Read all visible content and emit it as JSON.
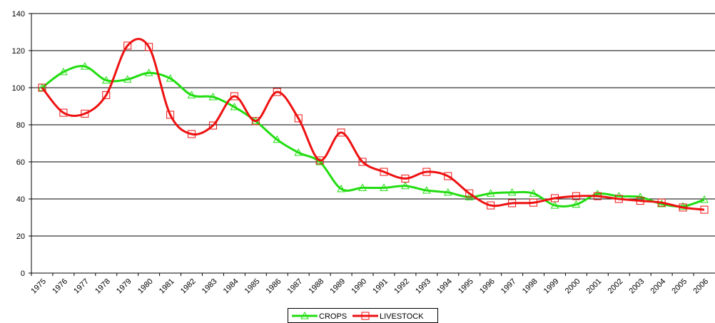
{
  "chart_data": {
    "type": "line",
    "categories": [
      "1975",
      "1976",
      "1977",
      "1978",
      "1979",
      "1980",
      "1981",
      "1982",
      "1983",
      "1984",
      "1985",
      "1986",
      "1987",
      "1988",
      "1989",
      "1990",
      "1991",
      "1992",
      "1993",
      "1994",
      "1995",
      "1996",
      "1997",
      "1998",
      "1999",
      "2000",
      "2001",
      "2002",
      "2003",
      "2004",
      "2005",
      "2006"
    ],
    "series": [
      {
        "name": "CROPS",
        "color": "#22dd11",
        "marker": "triangle",
        "values": [
          100,
          108.5,
          111.5,
          104,
          104.5,
          108,
          105,
          96,
          95,
          89.6,
          82,
          72,
          65,
          60,
          45.4,
          46,
          46,
          47,
          44.6,
          43.5,
          41,
          43,
          43.5,
          43,
          36.5,
          37,
          42.7,
          41.5,
          41,
          37.3,
          36,
          39.6
        ]
      },
      {
        "name": "LIVESTOCK",
        "color": "#ee1111",
        "marker": "square",
        "values": [
          100,
          86.5,
          86,
          96,
          122.7,
          122,
          85.4,
          75,
          79.6,
          95.4,
          82,
          97.7,
          83.5,
          60.8,
          75.8,
          60,
          54.6,
          51,
          54.6,
          52.3,
          43,
          36.5,
          37.7,
          38,
          40.4,
          41.5,
          41.5,
          40,
          39,
          38,
          35.4,
          34.2
        ]
      }
    ],
    "ylim": [
      0,
      140
    ],
    "yticks": [
      0,
      20,
      40,
      60,
      80,
      100,
      120,
      140
    ],
    "grid": true,
    "smooth": true,
    "legend": "bottom"
  }
}
